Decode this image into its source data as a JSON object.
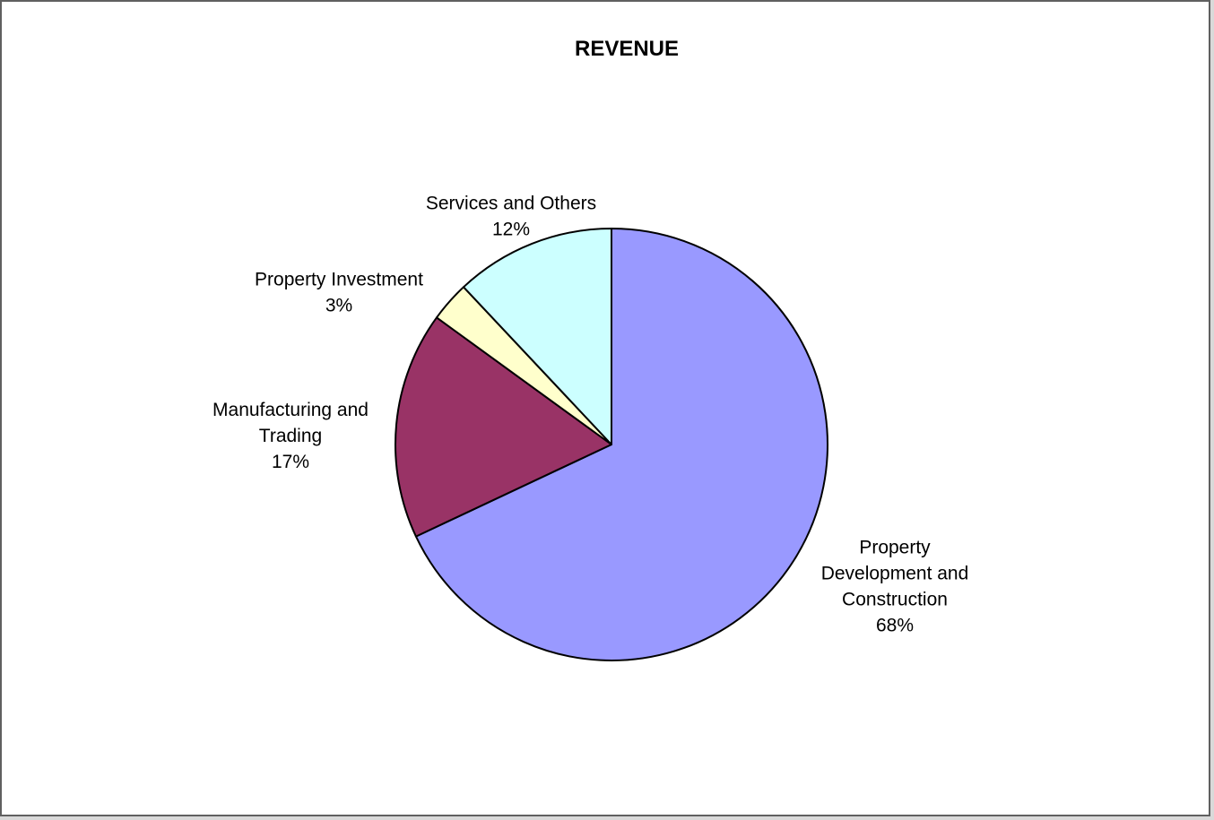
{
  "chart_data": {
    "type": "pie",
    "title": "REVENUE",
    "start_angle_deg": 0,
    "direction": "clockwise",
    "slices": [
      {
        "label_lines": [
          "Property",
          "Development and",
          "Construction"
        ],
        "percent_label": "68%",
        "value": 68,
        "color": "#9999FF"
      },
      {
        "label_lines": [
          "Manufacturing and",
          "Trading"
        ],
        "percent_label": "17%",
        "value": 17,
        "color": "#993366"
      },
      {
        "label_lines": [
          "Property Investment"
        ],
        "percent_label": "3%",
        "value": 3,
        "color": "#FFFFCC"
      },
      {
        "label_lines": [
          "Services and Others"
        ],
        "percent_label": "12%",
        "value": 12,
        "color": "#CCFFFF"
      }
    ],
    "legend": "none",
    "slice_border_color": "#000000"
  }
}
